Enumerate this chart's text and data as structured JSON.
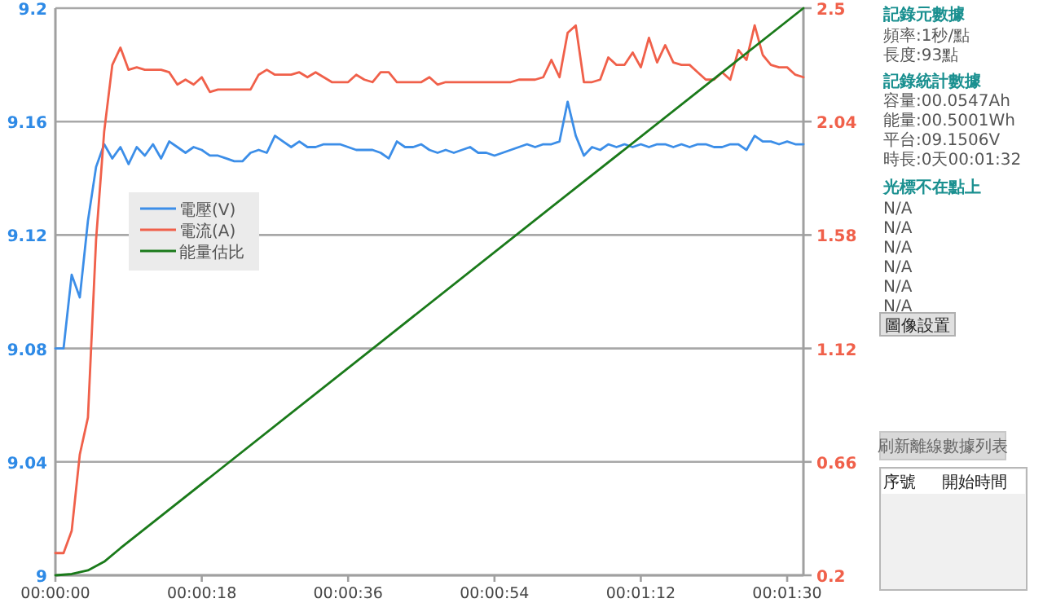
{
  "chart_data": {
    "type": "line",
    "x": [
      0,
      1,
      2,
      3,
      4,
      5,
      6,
      7,
      8,
      9,
      10,
      11,
      12,
      13,
      14,
      15,
      16,
      17,
      18,
      19,
      20,
      21,
      22,
      23,
      24,
      25,
      26,
      27,
      28,
      29,
      30,
      31,
      32,
      33,
      34,
      35,
      36,
      37,
      38,
      39,
      40,
      41,
      42,
      43,
      44,
      45,
      46,
      47,
      48,
      49,
      50,
      51,
      52,
      53,
      54,
      55,
      56,
      57,
      58,
      59,
      60,
      61,
      62,
      63,
      64,
      65,
      66,
      67,
      68,
      69,
      70,
      71,
      72,
      73,
      74,
      75,
      76,
      77,
      78,
      79,
      80,
      81,
      82,
      83,
      84,
      85,
      86,
      87,
      88,
      89,
      90,
      91,
      92
    ],
    "series": [
      {
        "name": "電壓(V)",
        "color": "#3c8ee8",
        "values": [
          9.08,
          9.08,
          9.106,
          9.098,
          9.125,
          9.144,
          9.152,
          9.147,
          9.151,
          9.145,
          9.151,
          9.148,
          9.152,
          9.147,
          9.153,
          9.151,
          9.149,
          9.151,
          9.15,
          9.148,
          9.148,
          9.147,
          9.146,
          9.146,
          9.149,
          9.15,
          9.149,
          9.155,
          9.153,
          9.151,
          9.153,
          9.151,
          9.151,
          9.152,
          9.152,
          9.152,
          9.151,
          9.15,
          9.15,
          9.15,
          9.149,
          9.147,
          9.153,
          9.151,
          9.151,
          9.152,
          9.15,
          9.149,
          9.15,
          9.149,
          9.15,
          9.151,
          9.149,
          9.149,
          9.148,
          9.149,
          9.15,
          9.151,
          9.152,
          9.151,
          9.152,
          9.152,
          9.153,
          9.167,
          9.155,
          9.148,
          9.151,
          9.15,
          9.152,
          9.151,
          9.152,
          9.151,
          9.152,
          9.151,
          9.152,
          9.152,
          9.151,
          9.152,
          9.151,
          9.152,
          9.152,
          9.151,
          9.151,
          9.152,
          9.152,
          9.15,
          9.155,
          9.153,
          9.153,
          9.152,
          9.153,
          9.152,
          9.152
        ]
      },
      {
        "name": "電流(A)",
        "color": "#f0604a",
        "axis": "y2",
        "values": [
          0.29,
          0.29,
          0.38,
          0.69,
          0.84,
          1.56,
          2.0,
          2.27,
          2.34,
          2.25,
          2.26,
          2.25,
          2.25,
          2.25,
          2.24,
          2.19,
          2.21,
          2.19,
          2.22,
          2.16,
          2.17,
          2.17,
          2.17,
          2.17,
          2.17,
          2.23,
          2.25,
          2.23,
          2.23,
          2.23,
          2.24,
          2.22,
          2.24,
          2.22,
          2.2,
          2.2,
          2.2,
          2.23,
          2.21,
          2.2,
          2.24,
          2.24,
          2.2,
          2.2,
          2.2,
          2.2,
          2.22,
          2.19,
          2.2,
          2.2,
          2.2,
          2.2,
          2.2,
          2.2,
          2.2,
          2.2,
          2.2,
          2.21,
          2.21,
          2.21,
          2.22,
          2.29,
          2.22,
          2.4,
          2.43,
          2.2,
          2.2,
          2.21,
          2.3,
          2.27,
          2.27,
          2.32,
          2.26,
          2.38,
          2.28,
          2.35,
          2.28,
          2.27,
          2.27,
          2.24,
          2.21,
          2.21,
          2.24,
          2.21,
          2.33,
          2.29,
          2.43,
          2.31,
          2.27,
          2.26,
          2.26,
          2.23,
          2.22
        ]
      },
      {
        "name": "能量估比",
        "color": "#1a7a1a",
        "axis": "y2",
        "x": [
          0,
          2,
          4,
          6,
          8,
          20,
          40,
          60,
          80,
          92
        ],
        "values": [
          0.2,
          0.205,
          0.22,
          0.255,
          0.31,
          0.623,
          1.145,
          1.667,
          2.187,
          2.5
        ]
      }
    ],
    "xlim": [
      0,
      92
    ],
    "xticks": [
      {
        "value": 0,
        "label": "00:00:00"
      },
      {
        "value": 18,
        "label": "00:00:18"
      },
      {
        "value": 36,
        "label": "00:00:36"
      },
      {
        "value": 54,
        "label": "00:00:54"
      },
      {
        "value": 72,
        "label": "00:01:12"
      },
      {
        "value": 90,
        "label": "00:01:30"
      }
    ],
    "ylim": [
      9,
      9.2
    ],
    "yticks": [
      9,
      9.04,
      9.08,
      9.12,
      9.16,
      9.2
    ],
    "y2lim": [
      0.2,
      2.5
    ],
    "y2ticks": [
      0.2,
      0.66,
      1.12,
      1.58,
      2.04,
      2.5
    ],
    "grid": "y",
    "legend": "left",
    "marker": "none",
    "line_style": "solid",
    "annotations": [
      "記錄元數據",
      "頻率:1秒/點",
      "長度:93點",
      "記錄統計數據",
      "容量:00.0547Ah",
      "能量:00.5001Wh",
      "平台:09.1506V",
      "時長:0天00:01:32",
      "光標不在點上",
      "N/A",
      "N/A",
      "N/A",
      "N/A",
      "N/A",
      "N/A",
      "圖像設置",
      "刷新離線數據列表",
      "序號",
      "開始時間"
    ]
  }
}
